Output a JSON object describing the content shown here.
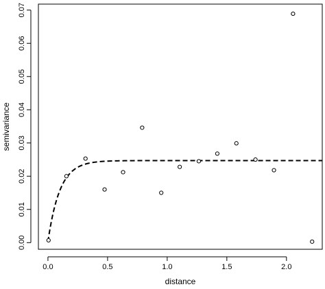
{
  "chart_data": {
    "type": "scatter",
    "xlabel": "distance",
    "ylabel": "semivariance",
    "xlim": [
      -0.08,
      2.3
    ],
    "ylim": [
      -0.002,
      0.0718
    ],
    "x_ticks": [
      "0.0",
      "0.5",
      "1.0",
      "1.5",
      "2.0"
    ],
    "y_ticks": [
      "0.00",
      "0.01",
      "0.02",
      "0.03",
      "0.04",
      "0.05",
      "0.06",
      "0.07"
    ],
    "points": {
      "x": [
        0.005,
        0.155,
        0.315,
        0.475,
        0.63,
        0.79,
        0.95,
        1.105,
        1.265,
        1.42,
        1.58,
        1.74,
        1.895,
        2.055,
        2.215
      ],
      "y": [
        0.0007,
        0.02,
        0.0253,
        0.016,
        0.0212,
        0.0346,
        0.015,
        0.0228,
        0.0245,
        0.0268,
        0.0299,
        0.025,
        0.0218,
        0.0689,
        0.0003
      ]
    },
    "fitted_model": {
      "style": "dashed",
      "nugget": 0.0003,
      "sill": 0.0247,
      "range": 0.1
    }
  }
}
